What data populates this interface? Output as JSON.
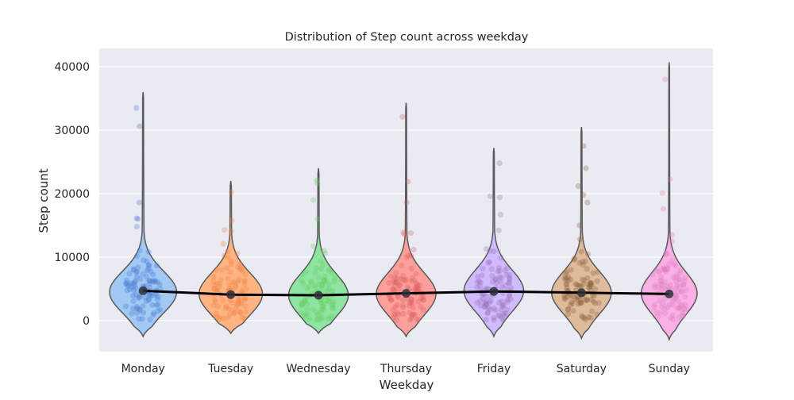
{
  "chart_data": {
    "type": "violin",
    "title": "Distribution of Step count across weekday",
    "xlabel": "Weekday",
    "ylabel": "Step count",
    "categories": [
      "Monday",
      "Tuesday",
      "Wednesday",
      "Thursday",
      "Friday",
      "Saturday",
      "Sunday"
    ],
    "ylim": [
      -5000,
      45000
    ],
    "yticks": [
      0,
      10000,
      20000,
      30000,
      40000
    ],
    "ytick_labels": [
      "0",
      "10000",
      "20000",
      "30000",
      "40000"
    ],
    "grid": true,
    "background": "#eaeaf2",
    "colors": [
      "#a1c9f4",
      "#ffb482",
      "#8de5a1",
      "#ff9f9b",
      "#d0bbff",
      "#debb9b",
      "#fab0e4"
    ],
    "point_colors": [
      "#4878d0",
      "#ee854a",
      "#6acc64",
      "#d65f5f",
      "#956cb4",
      "#8c613c",
      "#dc7ec0"
    ],
    "mean_line_color": "#000000",
    "distributions": [
      {
        "category": "Monday",
        "mean": 4700,
        "min": -2500,
        "max": 36000,
        "mode": 4500,
        "width": 0.9,
        "outliers": [
          33500,
          30600,
          18600,
          16100,
          16000,
          14800,
          11000,
          10800,
          10200
        ]
      },
      {
        "category": "Tuesday",
        "mean": 4100,
        "min": -2000,
        "max": 22000,
        "mode": 4200,
        "width": 0.85,
        "outliers": [
          20200,
          15800,
          14300,
          14100,
          12100,
          10600,
          10200
        ]
      },
      {
        "category": "Wednesday",
        "mean": 4000,
        "min": -2000,
        "max": 24000,
        "mode": 4000,
        "width": 0.8,
        "outliers": [
          22100,
          21600,
          19000,
          16000,
          11700,
          11000,
          10600
        ]
      },
      {
        "category": "Thursday",
        "mean": 4300,
        "min": -2500,
        "max": 34300,
        "mode": 4200,
        "width": 0.8,
        "outliers": [
          32100,
          21900,
          18600,
          13900,
          13800,
          13600,
          11200
        ]
      },
      {
        "category": "Friday",
        "mean": 4600,
        "min": -2500,
        "max": 27200,
        "mode": 4700,
        "width": 0.8,
        "outliers": [
          24800,
          19600,
          19400,
          16700,
          14200,
          11300,
          10900
        ]
      },
      {
        "category": "Saturday",
        "mean": 4400,
        "min": -2800,
        "max": 30500,
        "mode": 4400,
        "width": 0.8,
        "outliers": [
          27500,
          24000,
          21200,
          19800,
          18600,
          15000,
          12800,
          10500
        ]
      },
      {
        "category": "Sunday",
        "mean": 4200,
        "min": -3000,
        "max": 40700,
        "mode": 4300,
        "width": 0.75,
        "outliers": [
          38000,
          22300,
          20100,
          17600,
          13500,
          12500,
          10500,
          10400
        ]
      }
    ]
  }
}
